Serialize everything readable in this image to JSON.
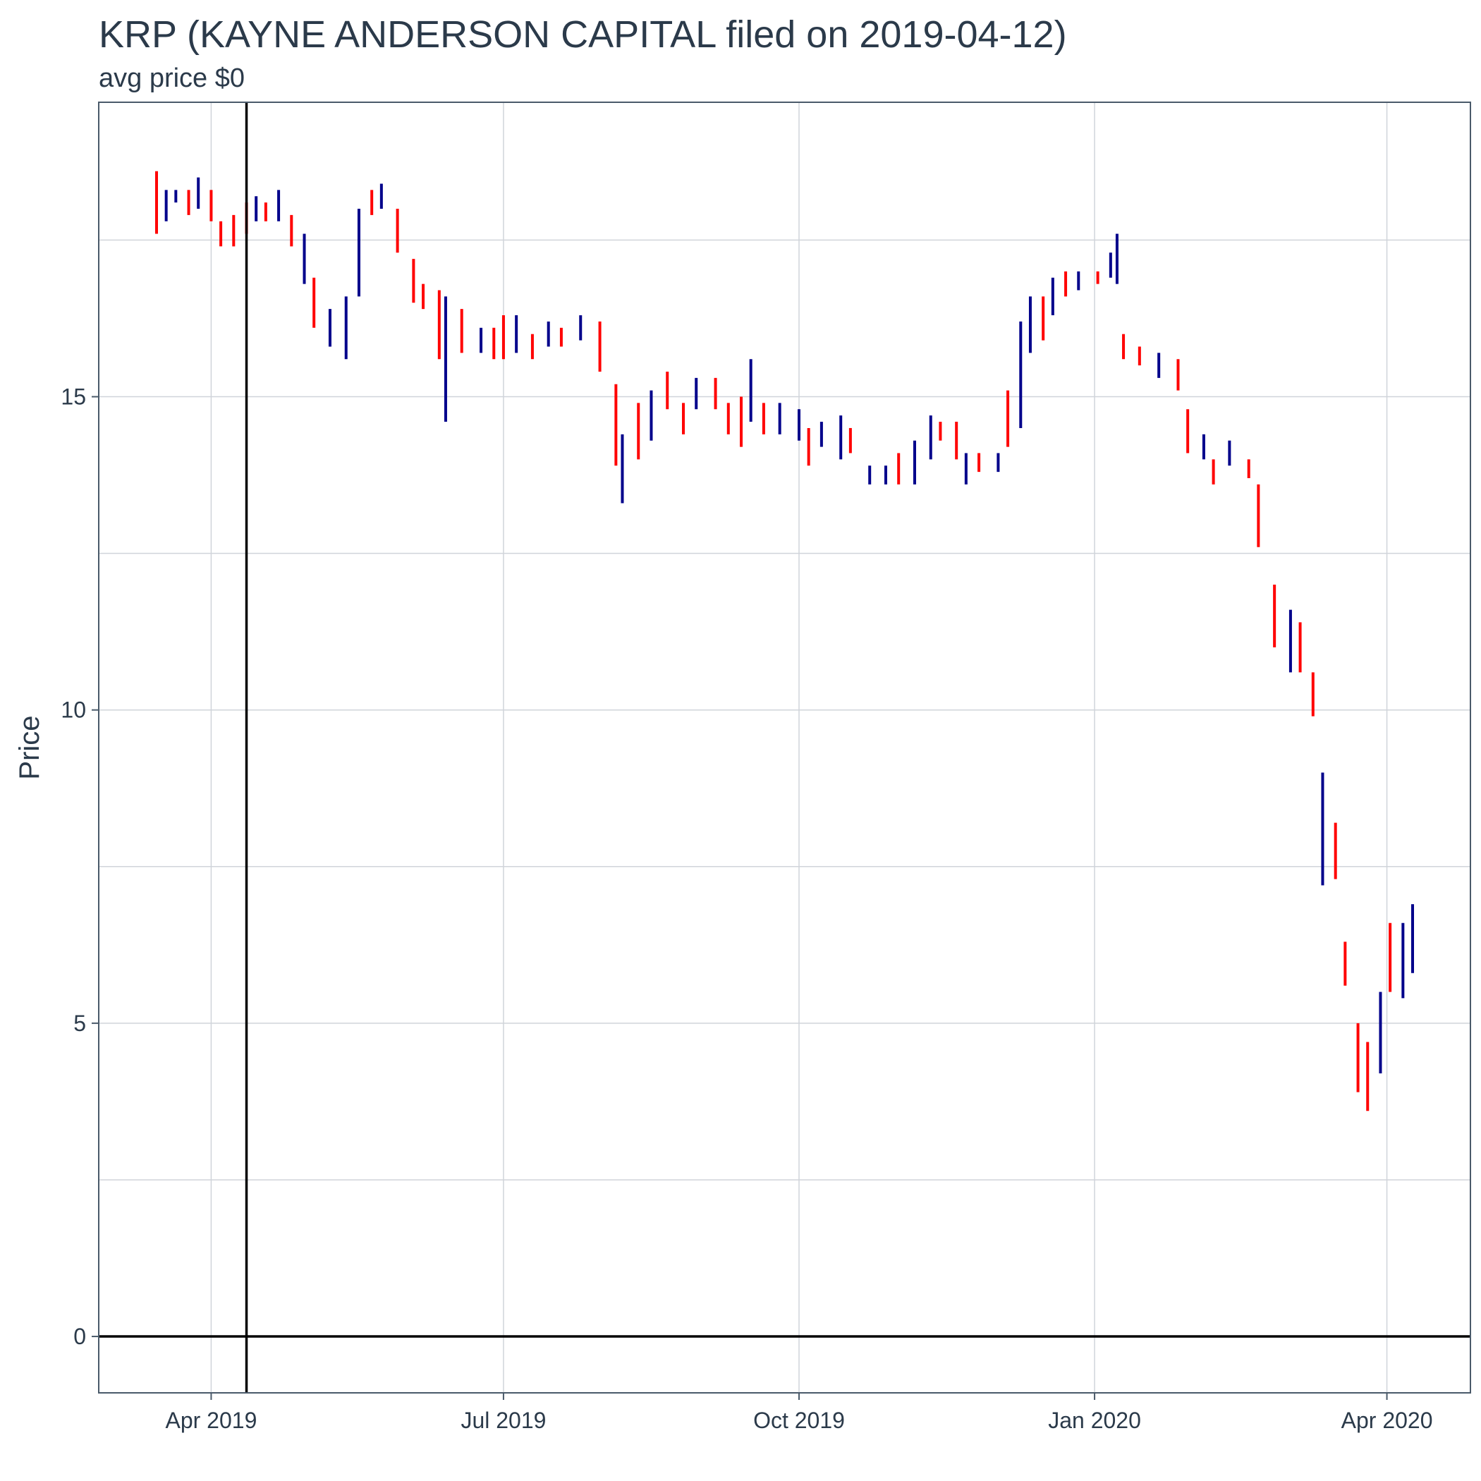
{
  "header": {
    "title": "KRP (KAYNE ANDERSON CAPITAL  filed on 2019-04-12)",
    "subtitle": "avg price $0"
  },
  "colors": {
    "up": "#00008b",
    "down": "#ff0000",
    "grid": "#d0d4da",
    "frame": "#4a5a6a",
    "reference": "#000000"
  },
  "chart_data": {
    "type": "ohlc",
    "title": "KRP (KAYNE ANDERSON CAPITAL  filed on 2019-04-12)",
    "subtitle": "avg price $0",
    "xlabel": "",
    "ylabel": "Price",
    "xlim": [
      "2019-02-25",
      "2020-04-27"
    ],
    "ylim": [
      -0.9,
      19.7
    ],
    "grid": true,
    "legend": "none",
    "yticks": [
      0,
      5,
      10,
      15
    ],
    "xticks": [
      {
        "date": "2019-04-01",
        "label": "Apr 2019"
      },
      {
        "date": "2019-07-01",
        "label": "Jul 2019"
      },
      {
        "date": "2019-10-01",
        "label": "Oct 2019"
      },
      {
        "date": "2020-01-01",
        "label": "Jan 2020"
      },
      {
        "date": "2020-04-01",
        "label": "Apr 2020"
      }
    ],
    "reference_lines": {
      "vertical_date": "2019-04-12",
      "horizontal_value": 0
    },
    "bars": [
      {
        "date": "2019-03-15",
        "low": 17.6,
        "high": 18.6,
        "dir": "down"
      },
      {
        "date": "2019-03-18",
        "low": 17.8,
        "high": 18.3,
        "dir": "up"
      },
      {
        "date": "2019-03-21",
        "low": 18.1,
        "high": 18.3,
        "dir": "up"
      },
      {
        "date": "2019-03-25",
        "low": 17.9,
        "high": 18.3,
        "dir": "down"
      },
      {
        "date": "2019-03-28",
        "low": 18.0,
        "high": 18.5,
        "dir": "up"
      },
      {
        "date": "2019-04-01",
        "low": 17.8,
        "high": 18.3,
        "dir": "down"
      },
      {
        "date": "2019-04-04",
        "low": 17.4,
        "high": 17.8,
        "dir": "down"
      },
      {
        "date": "2019-04-08",
        "low": 17.4,
        "high": 17.9,
        "dir": "down"
      },
      {
        "date": "2019-04-12",
        "low": 17.6,
        "high": 18.1,
        "dir": "down"
      },
      {
        "date": "2019-04-15",
        "low": 17.8,
        "high": 18.2,
        "dir": "up"
      },
      {
        "date": "2019-04-18",
        "low": 17.8,
        "high": 18.1,
        "dir": "down"
      },
      {
        "date": "2019-04-22",
        "low": 17.8,
        "high": 18.3,
        "dir": "up"
      },
      {
        "date": "2019-04-26",
        "low": 17.4,
        "high": 17.9,
        "dir": "down"
      },
      {
        "date": "2019-04-30",
        "low": 16.8,
        "high": 17.6,
        "dir": "up"
      },
      {
        "date": "2019-05-03",
        "low": 16.1,
        "high": 16.9,
        "dir": "down"
      },
      {
        "date": "2019-05-08",
        "low": 15.8,
        "high": 16.4,
        "dir": "up"
      },
      {
        "date": "2019-05-13",
        "low": 15.6,
        "high": 16.6,
        "dir": "up"
      },
      {
        "date": "2019-05-17",
        "low": 16.6,
        "high": 18.0,
        "dir": "up"
      },
      {
        "date": "2019-05-21",
        "low": 17.9,
        "high": 18.3,
        "dir": "down"
      },
      {
        "date": "2019-05-24",
        "low": 18.0,
        "high": 18.4,
        "dir": "up"
      },
      {
        "date": "2019-05-29",
        "low": 17.3,
        "high": 18.0,
        "dir": "down"
      },
      {
        "date": "2019-06-03",
        "low": 16.5,
        "high": 17.2,
        "dir": "down"
      },
      {
        "date": "2019-06-06",
        "low": 16.4,
        "high": 16.8,
        "dir": "down"
      },
      {
        "date": "2019-06-11",
        "low": 15.6,
        "high": 16.7,
        "dir": "down"
      },
      {
        "date": "2019-06-13",
        "low": 14.6,
        "high": 16.6,
        "dir": "up"
      },
      {
        "date": "2019-06-18",
        "low": 15.7,
        "high": 16.4,
        "dir": "down"
      },
      {
        "date": "2019-06-24",
        "low": 15.7,
        "high": 16.1,
        "dir": "up"
      },
      {
        "date": "2019-06-28",
        "low": 15.6,
        "high": 16.1,
        "dir": "down"
      },
      {
        "date": "2019-07-01",
        "low": 15.6,
        "high": 16.3,
        "dir": "down"
      },
      {
        "date": "2019-07-05",
        "low": 15.7,
        "high": 16.3,
        "dir": "up"
      },
      {
        "date": "2019-07-10",
        "low": 15.6,
        "high": 16.0,
        "dir": "down"
      },
      {
        "date": "2019-07-15",
        "low": 15.8,
        "high": 16.2,
        "dir": "up"
      },
      {
        "date": "2019-07-19",
        "low": 15.8,
        "high": 16.1,
        "dir": "down"
      },
      {
        "date": "2019-07-25",
        "low": 15.9,
        "high": 16.3,
        "dir": "up"
      },
      {
        "date": "2019-07-31",
        "low": 15.4,
        "high": 16.2,
        "dir": "down"
      },
      {
        "date": "2019-08-05",
        "low": 13.9,
        "high": 15.2,
        "dir": "down"
      },
      {
        "date": "2019-08-07",
        "low": 13.3,
        "high": 14.4,
        "dir": "up"
      },
      {
        "date": "2019-08-12",
        "low": 14.0,
        "high": 14.9,
        "dir": "down"
      },
      {
        "date": "2019-08-16",
        "low": 14.3,
        "high": 15.1,
        "dir": "up"
      },
      {
        "date": "2019-08-21",
        "low": 14.8,
        "high": 15.4,
        "dir": "down"
      },
      {
        "date": "2019-08-26",
        "low": 14.4,
        "high": 14.9,
        "dir": "down"
      },
      {
        "date": "2019-08-30",
        "low": 14.8,
        "high": 15.3,
        "dir": "up"
      },
      {
        "date": "2019-09-05",
        "low": 14.8,
        "high": 15.3,
        "dir": "down"
      },
      {
        "date": "2019-09-09",
        "low": 14.4,
        "high": 14.9,
        "dir": "down"
      },
      {
        "date": "2019-09-13",
        "low": 14.2,
        "high": 15.0,
        "dir": "down"
      },
      {
        "date": "2019-09-16",
        "low": 14.6,
        "high": 15.6,
        "dir": "up"
      },
      {
        "date": "2019-09-20",
        "low": 14.4,
        "high": 14.9,
        "dir": "down"
      },
      {
        "date": "2019-09-25",
        "low": 14.4,
        "high": 14.9,
        "dir": "up"
      },
      {
        "date": "2019-10-01",
        "low": 14.3,
        "high": 14.8,
        "dir": "up"
      },
      {
        "date": "2019-10-04",
        "low": 13.9,
        "high": 14.5,
        "dir": "down"
      },
      {
        "date": "2019-10-08",
        "low": 14.2,
        "high": 14.6,
        "dir": "up"
      },
      {
        "date": "2019-10-14",
        "low": 14.0,
        "high": 14.7,
        "dir": "up"
      },
      {
        "date": "2019-10-17",
        "low": 14.1,
        "high": 14.5,
        "dir": "down"
      },
      {
        "date": "2019-10-23",
        "low": 13.6,
        "high": 13.9,
        "dir": "up"
      },
      {
        "date": "2019-10-28",
        "low": 13.6,
        "high": 13.9,
        "dir": "up"
      },
      {
        "date": "2019-11-01",
        "low": 13.6,
        "high": 14.1,
        "dir": "down"
      },
      {
        "date": "2019-11-06",
        "low": 13.6,
        "high": 14.3,
        "dir": "up"
      },
      {
        "date": "2019-11-11",
        "low": 14.0,
        "high": 14.7,
        "dir": "up"
      },
      {
        "date": "2019-11-14",
        "low": 14.3,
        "high": 14.6,
        "dir": "down"
      },
      {
        "date": "2019-11-19",
        "low": 14.0,
        "high": 14.6,
        "dir": "down"
      },
      {
        "date": "2019-11-22",
        "low": 13.6,
        "high": 14.1,
        "dir": "up"
      },
      {
        "date": "2019-11-26",
        "low": 13.8,
        "high": 14.1,
        "dir": "down"
      },
      {
        "date": "2019-12-02",
        "low": 13.8,
        "high": 14.1,
        "dir": "up"
      },
      {
        "date": "2019-12-05",
        "low": 14.2,
        "high": 15.1,
        "dir": "down"
      },
      {
        "date": "2019-12-09",
        "low": 14.5,
        "high": 16.2,
        "dir": "up"
      },
      {
        "date": "2019-12-12",
        "low": 15.7,
        "high": 16.6,
        "dir": "up"
      },
      {
        "date": "2019-12-16",
        "low": 15.9,
        "high": 16.6,
        "dir": "down"
      },
      {
        "date": "2019-12-19",
        "low": 16.3,
        "high": 16.9,
        "dir": "up"
      },
      {
        "date": "2019-12-23",
        "low": 16.6,
        "high": 17.0,
        "dir": "down"
      },
      {
        "date": "2019-12-27",
        "low": 16.7,
        "high": 17.0,
        "dir": "up"
      },
      {
        "date": "2020-01-02",
        "low": 16.8,
        "high": 17.0,
        "dir": "down"
      },
      {
        "date": "2020-01-06",
        "low": 16.9,
        "high": 17.3,
        "dir": "up"
      },
      {
        "date": "2020-01-08",
        "low": 16.8,
        "high": 17.6,
        "dir": "up"
      },
      {
        "date": "2020-01-10",
        "low": 15.6,
        "high": 16.0,
        "dir": "down"
      },
      {
        "date": "2020-01-15",
        "low": 15.5,
        "high": 15.8,
        "dir": "down"
      },
      {
        "date": "2020-01-21",
        "low": 15.3,
        "high": 15.7,
        "dir": "up"
      },
      {
        "date": "2020-01-27",
        "low": 15.1,
        "high": 15.6,
        "dir": "down"
      },
      {
        "date": "2020-01-30",
        "low": 14.1,
        "high": 14.8,
        "dir": "down"
      },
      {
        "date": "2020-02-04",
        "low": 14.0,
        "high": 14.4,
        "dir": "up"
      },
      {
        "date": "2020-02-07",
        "low": 13.6,
        "high": 14.0,
        "dir": "down"
      },
      {
        "date": "2020-02-12",
        "low": 13.9,
        "high": 14.3,
        "dir": "up"
      },
      {
        "date": "2020-02-18",
        "low": 13.7,
        "high": 14.0,
        "dir": "down"
      },
      {
        "date": "2020-02-21",
        "low": 12.6,
        "high": 13.6,
        "dir": "down"
      },
      {
        "date": "2020-02-26",
        "low": 11.0,
        "high": 12.0,
        "dir": "down"
      },
      {
        "date": "2020-03-02",
        "low": 10.6,
        "high": 11.6,
        "dir": "up"
      },
      {
        "date": "2020-03-05",
        "low": 10.6,
        "high": 11.4,
        "dir": "down"
      },
      {
        "date": "2020-03-09",
        "low": 9.9,
        "high": 10.6,
        "dir": "down"
      },
      {
        "date": "2020-03-12",
        "low": 7.2,
        "high": 9.0,
        "dir": "up"
      },
      {
        "date": "2020-03-16",
        "low": 7.3,
        "high": 8.2,
        "dir": "down"
      },
      {
        "date": "2020-03-19",
        "low": 5.6,
        "high": 6.3,
        "dir": "down"
      },
      {
        "date": "2020-03-23",
        "low": 3.9,
        "high": 5.0,
        "dir": "down"
      },
      {
        "date": "2020-03-26",
        "low": 3.6,
        "high": 4.7,
        "dir": "down"
      },
      {
        "date": "2020-03-30",
        "low": 4.2,
        "high": 5.5,
        "dir": "up"
      },
      {
        "date": "2020-04-02",
        "low": 5.5,
        "high": 6.6,
        "dir": "down"
      },
      {
        "date": "2020-04-06",
        "low": 5.4,
        "high": 6.6,
        "dir": "up"
      },
      {
        "date": "2020-04-09",
        "low": 5.8,
        "high": 6.9,
        "dir": "up"
      }
    ]
  }
}
